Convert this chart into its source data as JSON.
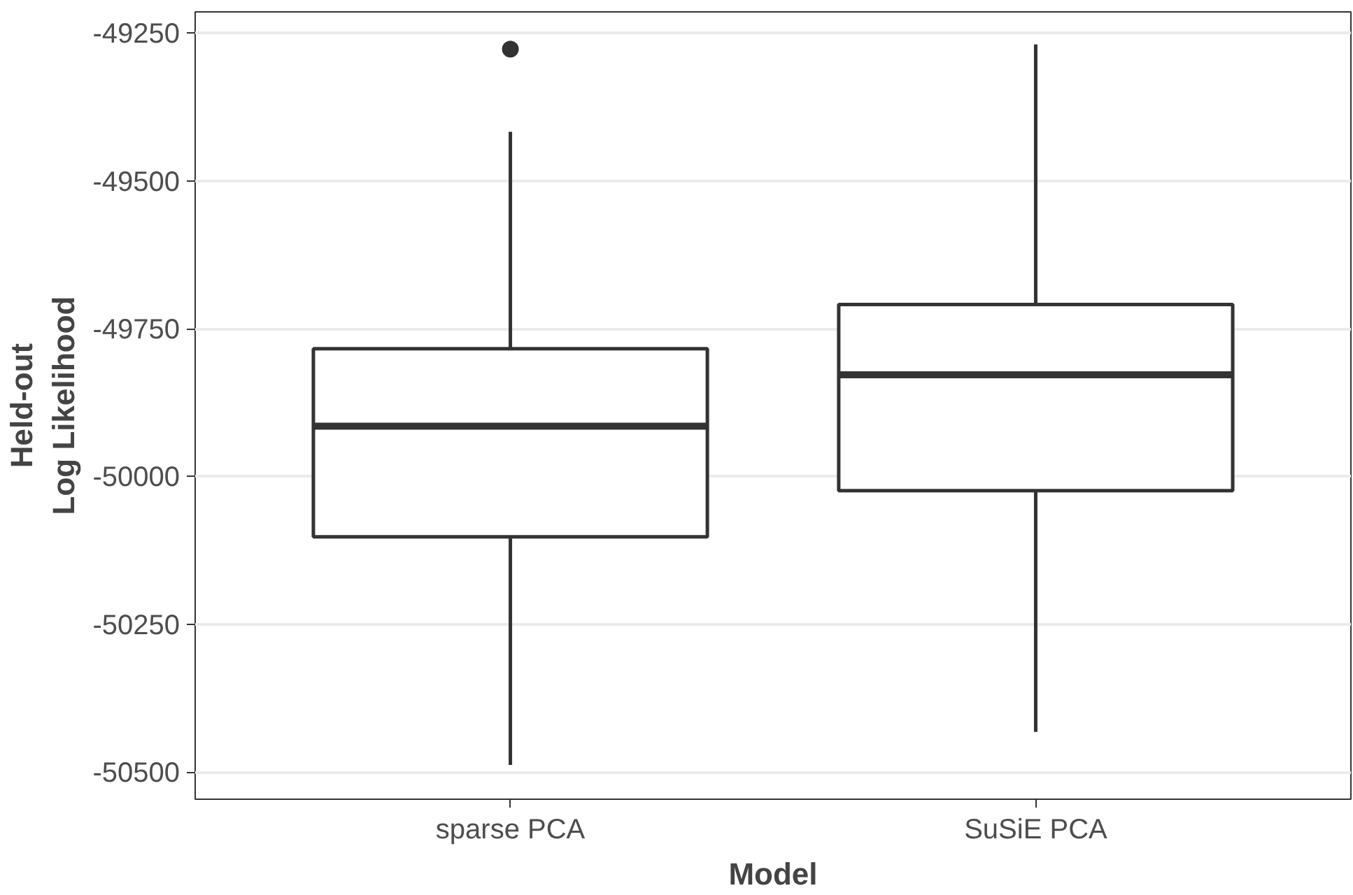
{
  "chart_data": {
    "type": "box",
    "xlabel": "Model",
    "ylabel": "Held-out\nLog Likelihood",
    "categories": [
      "sparse PCA",
      "SuSiE PCA"
    ],
    "boxes": [
      {
        "low": -50488,
        "q1": -50102,
        "median": -49915,
        "q3": -49784,
        "high": -49417,
        "outliers": [
          -49277
        ]
      },
      {
        "low": -50432,
        "q1": -50024,
        "median": -49828,
        "q3": -49709,
        "high": -49269
      }
    ],
    "color": "#333333",
    "ylim": [
      -50546,
      -49214
    ],
    "yticks": [
      -49250,
      -49500,
      -49750,
      -50000,
      -50250,
      -50500
    ],
    "grid": "y"
  }
}
